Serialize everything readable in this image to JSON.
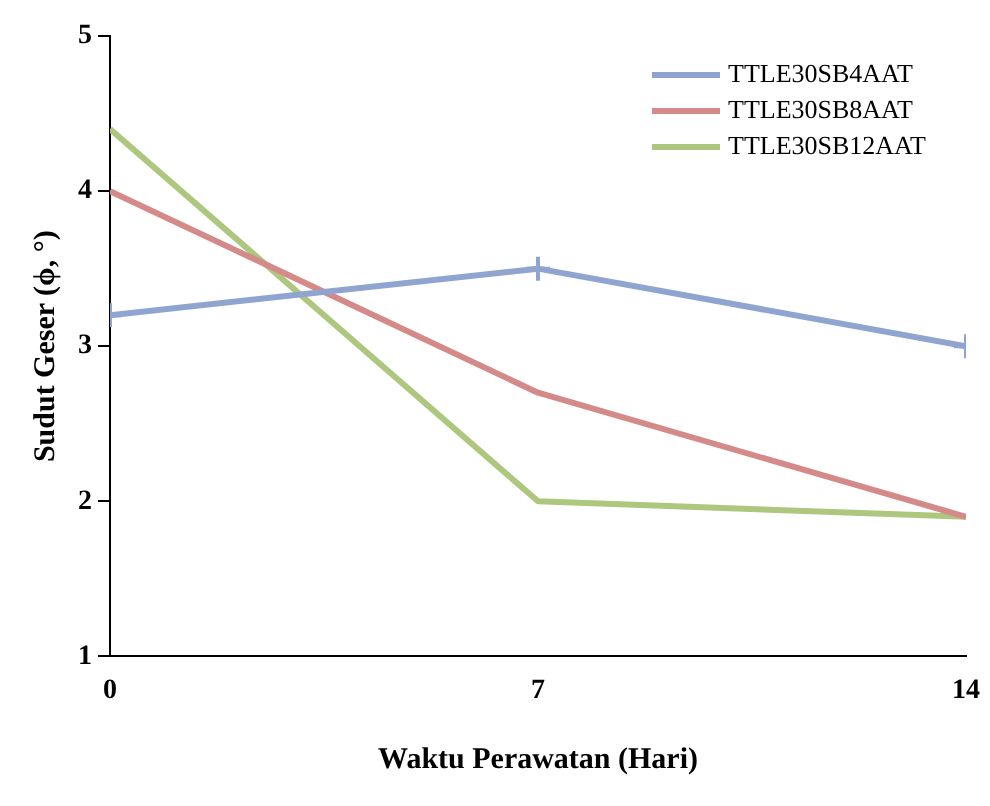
{
  "chart_data": {
    "type": "line",
    "xlabel": "Waktu Perawatan (Hari)",
    "ylabel": "Sudut Geser (ϕ, °)",
    "x": [
      0,
      7,
      14
    ],
    "xlim": [
      0,
      14
    ],
    "xticks": [
      0,
      7,
      14
    ],
    "ylim": [
      1,
      5
    ],
    "yticks": [
      1,
      2,
      3,
      4,
      5
    ],
    "grid": false,
    "legend": "top right",
    "line_style": "solid",
    "series": [
      {
        "name": "TTLE30SB4AAT",
        "color": "#8fa5cf",
        "values": [
          3.2,
          3.5,
          3.0
        ],
        "marker": "cross"
      },
      {
        "name": "TTLE30SB8AAT",
        "color": "#d48a88",
        "values": [
          4.0,
          2.7,
          1.9
        ],
        "marker": "none"
      },
      {
        "name": "TTLE30SB12AAT",
        "color": "#aec77e",
        "values": [
          4.4,
          2.0,
          1.9
        ],
        "marker": "none"
      }
    ]
  }
}
